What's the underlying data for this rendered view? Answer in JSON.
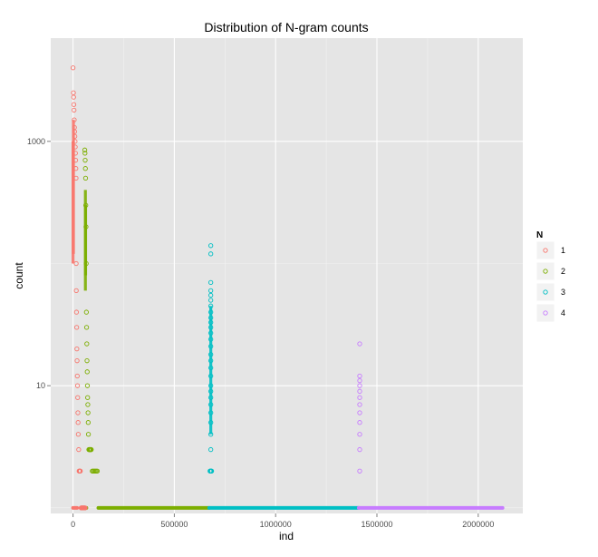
{
  "chart_data": {
    "type": "scatter",
    "title": "Distribution of N-gram counts",
    "xlabel": "ind",
    "ylabel": "count",
    "y_scale": "log10",
    "xlim": [
      -110000,
      2220000
    ],
    "ylim": [
      0.9,
      7000
    ],
    "x_ticks": [
      0,
      500000,
      1000000,
      1500000,
      2000000
    ],
    "x_tick_labels": [
      "0",
      "500000",
      "1000000",
      "1500000",
      "2000000"
    ],
    "y_ticks": [
      10,
      1000
    ],
    "y_tick_labels": [
      "10",
      "1000"
    ],
    "grid": true,
    "legend": {
      "title": "N",
      "position": "right"
    },
    "series": [
      {
        "name": "1",
        "color": "#F8766D",
        "ranges": [
          [
            0,
            20000
          ]
        ],
        "points": [
          [
            0,
            4000
          ],
          [
            2000,
            2500
          ],
          [
            3000,
            2300
          ],
          [
            4000,
            2000
          ],
          [
            5000,
            1800
          ],
          [
            6000,
            1500
          ],
          [
            7000,
            1300
          ],
          [
            8000,
            1200
          ],
          [
            9000,
            1100
          ],
          [
            10000,
            1000
          ],
          [
            11000,
            900
          ],
          [
            12000,
            800
          ],
          [
            13000,
            700
          ],
          [
            14000,
            600
          ],
          [
            15000,
            500
          ],
          [
            15500,
            100
          ],
          [
            16000,
            60
          ],
          [
            17000,
            40
          ],
          [
            18000,
            30
          ],
          [
            19000,
            20
          ],
          [
            20000,
            16
          ],
          [
            21000,
            12
          ],
          [
            22000,
            10
          ],
          [
            23000,
            8
          ],
          [
            24000,
            6
          ],
          [
            25000,
            5
          ],
          [
            26000,
            4
          ],
          [
            28000,
            3
          ],
          [
            30000,
            2
          ],
          [
            32000,
            2
          ],
          [
            34000,
            2
          ],
          [
            36000,
            2
          ],
          [
            40000,
            1
          ],
          [
            42000,
            1
          ],
          [
            44000,
            1
          ],
          [
            46000,
            1
          ],
          [
            48000,
            1
          ],
          [
            50000,
            1
          ],
          [
            52000,
            1
          ],
          [
            54000,
            1
          ],
          [
            56000,
            1
          ],
          [
            58000,
            1
          ],
          [
            60000,
            1
          ]
        ]
      },
      {
        "name": "2",
        "color": "#7CAE00",
        "ranges": [
          [
            60000,
            66000
          ],
          [
            125000,
            672000
          ]
        ],
        "points": [
          [
            58000,
            850
          ],
          [
            59000,
            800
          ],
          [
            60000,
            700
          ],
          [
            61000,
            600
          ],
          [
            62000,
            500
          ],
          [
            63000,
            300
          ],
          [
            64000,
            200
          ],
          [
            65000,
            100
          ],
          [
            66000,
            40
          ],
          [
            67000,
            30
          ],
          [
            68000,
            22
          ],
          [
            69000,
            16
          ],
          [
            70000,
            13
          ],
          [
            71000,
            10
          ],
          [
            72000,
            8
          ],
          [
            73000,
            7
          ],
          [
            74000,
            6
          ],
          [
            75000,
            5
          ],
          [
            76000,
            4
          ],
          [
            78000,
            3
          ],
          [
            80000,
            3
          ],
          [
            82000,
            3
          ],
          [
            84000,
            3
          ],
          [
            86000,
            3
          ],
          [
            88000,
            3
          ],
          [
            90000,
            3
          ],
          [
            95000,
            2
          ],
          [
            100000,
            2
          ],
          [
            105000,
            2
          ],
          [
            110000,
            2
          ],
          [
            115000,
            2
          ],
          [
            120000,
            2
          ]
        ]
      },
      {
        "name": "3",
        "color": "#00BFC4",
        "ranges": [
          [
            672000,
            1410000
          ]
        ],
        "points": [
          [
            680000,
            140
          ],
          [
            680000,
            120
          ],
          [
            680000,
            70
          ],
          [
            680000,
            60
          ],
          [
            680000,
            55
          ],
          [
            680000,
            50
          ],
          [
            680000,
            45
          ],
          [
            680000,
            40
          ],
          [
            680000,
            36
          ],
          [
            680000,
            33
          ],
          [
            680000,
            30
          ],
          [
            680000,
            27
          ],
          [
            680000,
            24
          ],
          [
            680000,
            21
          ],
          [
            680000,
            18
          ],
          [
            680000,
            16
          ],
          [
            680000,
            14
          ],
          [
            680000,
            12
          ],
          [
            680000,
            10
          ],
          [
            680000,
            9
          ],
          [
            680000,
            8
          ],
          [
            680000,
            7
          ],
          [
            680000,
            6
          ],
          [
            680000,
            5
          ],
          [
            680000,
            4
          ],
          [
            680000,
            3
          ],
          [
            676000,
            2
          ],
          [
            678000,
            2
          ],
          [
            680000,
            2
          ],
          [
            682000,
            2
          ],
          [
            684000,
            2
          ]
        ]
      },
      {
        "name": "4",
        "color": "#C77CFF",
        "ranges": [
          [
            1410000,
            2120000
          ]
        ],
        "points": [
          [
            1415000,
            22
          ],
          [
            1415000,
            12
          ],
          [
            1415000,
            11
          ],
          [
            1415000,
            10
          ],
          [
            1415000,
            9
          ],
          [
            1415000,
            8
          ],
          [
            1415000,
            7
          ],
          [
            1415000,
            6
          ],
          [
            1415000,
            5
          ],
          [
            1415000,
            4
          ],
          [
            1415000,
            3
          ],
          [
            1415000,
            2
          ]
        ]
      }
    ]
  }
}
